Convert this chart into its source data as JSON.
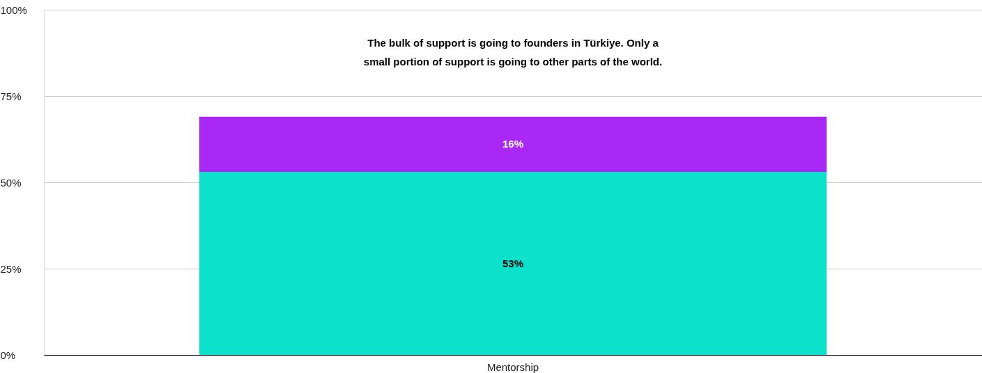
{
  "chart_data": {
    "type": "bar",
    "stacked": true,
    "title": "The bulk of support is going to founders in Türkiye. Only a\nsmall portion of support is going to other parts of the world.",
    "categories": [
      "Mentorship"
    ],
    "series": [
      {
        "color": "#0ce1cc",
        "values": [
          53
        ],
        "value_labels": [
          "53%"
        ]
      },
      {
        "color": "#aa28f5",
        "values": [
          16
        ],
        "value_labels": [
          "16%"
        ]
      }
    ],
    "ylim": [
      0,
      100
    ],
    "yticks": [
      {
        "value": 0,
        "label": "0%"
      },
      {
        "value": 25,
        "label": "25%"
      },
      {
        "value": 50,
        "label": "50%"
      },
      {
        "value": 75,
        "label": "75%"
      },
      {
        "value": 100,
        "label": "100%"
      }
    ],
    "grid": "y"
  }
}
